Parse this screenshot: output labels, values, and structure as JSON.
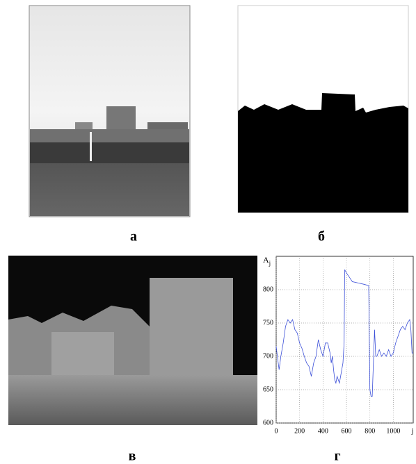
{
  "panels": {
    "a": "а",
    "b": "б",
    "c": "в",
    "d": "г"
  },
  "chart_data": {
    "type": "line",
    "y_label": {
      "base": "A",
      "subscript": "j"
    },
    "x_label": "j",
    "xlim": [
      0,
      1170
    ],
    "ylim": [
      600,
      850
    ],
    "xticks": [
      0,
      200,
      400,
      600,
      800,
      1000
    ],
    "yticks": [
      600,
      650,
      700,
      750,
      800
    ],
    "grid": true,
    "series": [
      {
        "color": "#3b4fd8",
        "x": [
          0,
          10,
          25,
          40,
          60,
          80,
          100,
          120,
          140,
          160,
          180,
          200,
          220,
          240,
          260,
          280,
          300,
          320,
          340,
          360,
          380,
          400,
          420,
          440,
          460,
          470,
          480,
          490,
          500,
          510,
          520,
          540,
          560,
          570,
          580,
          585,
          600,
          620,
          650,
          700,
          750,
          790,
          800,
          810,
          820,
          840,
          850,
          860,
          880,
          900,
          920,
          940,
          960,
          980,
          1000,
          1020,
          1040,
          1060,
          1080,
          1100,
          1120,
          1140,
          1150,
          1160,
          1170
        ],
        "values": [
          715,
          700,
          680,
          700,
          720,
          745,
          755,
          750,
          755,
          740,
          735,
          720,
          712,
          700,
          690,
          685,
          670,
          690,
          700,
          725,
          710,
          700,
          720,
          720,
          705,
          690,
          700,
          680,
          665,
          660,
          670,
          660,
          680,
          690,
          720,
          830,
          825,
          820,
          812,
          810,
          808,
          806,
          650,
          640,
          640,
          740,
          700,
          700,
          710,
          700,
          705,
          700,
          710,
          700,
          705,
          720,
          730,
          740,
          745,
          740,
          750,
          755,
          740,
          705,
          705
        ]
      }
    ]
  }
}
